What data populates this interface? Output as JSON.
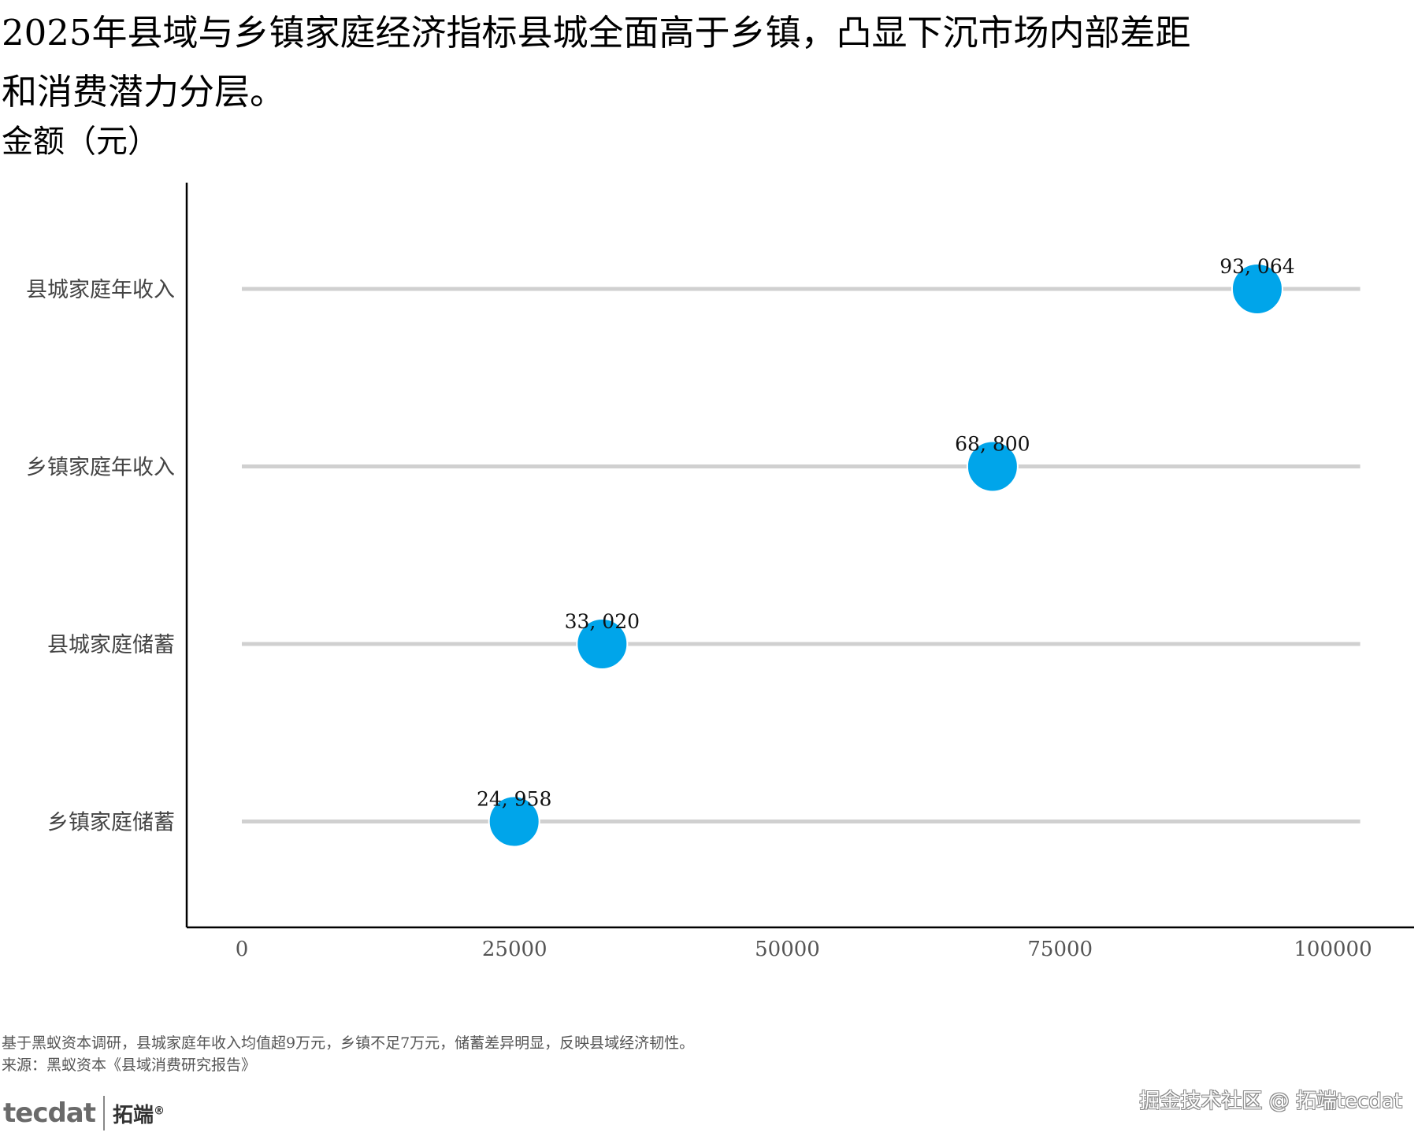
{
  "title": "2025年县域与乡镇家庭经济指标县城全面高于乡镇，凸显下沉市场内部差距和消费潜力分层。",
  "caption_lines": [
    "基于黑蚁资本调研，县城家庭年收入均值超9万元，乡镇不足7万元，储蓄差异明显，反映县域经济韧性。",
    "来源：黑蚁资本《县域消费研究报告》"
  ],
  "logo": {
    "mark": "tecdat",
    "name": "拓端",
    "reg": "®"
  },
  "watermark": "掘金技术社区 @ 拓端tecdat",
  "chart_data": {
    "type": "scatter",
    "subtype": "lollipop",
    "title": "2025年县域与乡镇家庭经济指标县城全面高于乡镇，凸显下沉市场内部差距和消费潜力分层。",
    "ylabel": "金额（元）",
    "xlabel": "",
    "categories": [
      "县城家庭年收入",
      "乡镇家庭年收入",
      "县城家庭储蓄",
      "乡镇家庭储蓄"
    ],
    "values": [
      93064,
      68800,
      33020,
      24958
    ],
    "value_labels": [
      "93, 064",
      "68, 800",
      "33, 020",
      "24, 958"
    ],
    "xlim": [
      0,
      102500
    ],
    "x_ticks": [
      0,
      25000,
      50000,
      75000,
      100000
    ],
    "x_tick_labels": [
      "0",
      "25000",
      "50000",
      "75000",
      "100000"
    ],
    "grid": false,
    "colors": {
      "point": "#00A5EA",
      "track": "#d0d0d0",
      "axis": "#000000"
    }
  }
}
